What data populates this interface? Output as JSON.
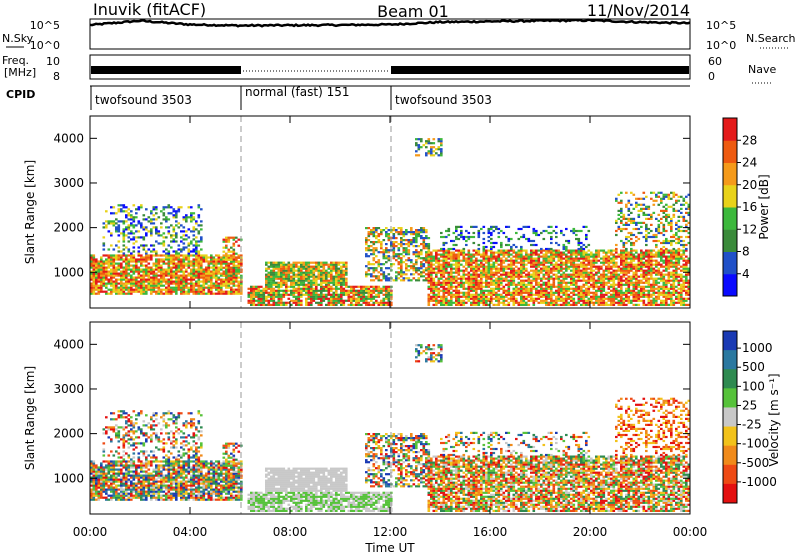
{
  "header": {
    "station": "Inuvik (fitACF)",
    "beam": "Beam 01",
    "date": "11/Nov/2014"
  },
  "top_panels": {
    "nsky_label": "N.Sky",
    "nsky_ticks": [
      "10^5",
      "10^0"
    ],
    "nsearch_label": "N.Search",
    "nsearch_ticks": [
      "10^5",
      "10^0"
    ],
    "freq_label_1": "Freq.",
    "freq_label_2": "[MHz]",
    "freq_ticks": [
      "10",
      "8"
    ],
    "nave_label": "Nave",
    "nave_ticks": [
      "60",
      "0"
    ],
    "cpid_label": "CPID",
    "cpid_segments": [
      {
        "label": "twofsound 3503",
        "start_hour": 0,
        "end_hour": 6
      },
      {
        "label": "normal (fast) 151",
        "start_hour": 6,
        "end_hour": 12
      },
      {
        "label": "twofsound 3503",
        "start_hour": 12,
        "end_hour": 24
      }
    ]
  },
  "x_axis": {
    "label": "Time UT",
    "ticks": [
      "00:00",
      "04:00",
      "08:00",
      "12:00",
      "16:00",
      "20:00",
      "00:00"
    ],
    "tick_hours": [
      0,
      4,
      8,
      12,
      16,
      20,
      24
    ]
  },
  "power_panel": {
    "ylabel": "Slant Range [km]",
    "yticks": [
      "1000",
      "2000",
      "3000",
      "4000"
    ],
    "colorbar_label": "Power [dB]",
    "colorbar_ticks": [
      "4",
      "8",
      "12",
      "16",
      "20",
      "24",
      "28"
    ],
    "colors": [
      "#0a0aff",
      "#2050c8",
      "#3a8a3a",
      "#3cb83c",
      "#e8d21a",
      "#f59a1a",
      "#ee5a10",
      "#e41a1a"
    ]
  },
  "velocity_panel": {
    "ylabel": "Slant Range [km]",
    "yticks": [
      "1000",
      "2000",
      "3000",
      "4000"
    ],
    "colorbar_label": "Velocity [m s⁻¹]",
    "colorbar_ticks": [
      "1000",
      "500",
      "100",
      "25",
      "-25",
      "-100",
      "-500",
      "-1000"
    ],
    "colors": [
      "#1a3ab4",
      "#2a78a0",
      "#2e8a50",
      "#56c23a",
      "#c8c8c8",
      "#f2c21a",
      "#f08a1a",
      "#ee4a14",
      "#e41010"
    ]
  },
  "chart_data": [
    {
      "type": "line",
      "title": "N.Sky / N.Search",
      "x": [
        0,
        2,
        4,
        6,
        8,
        10,
        12,
        14,
        16,
        18,
        20,
        22,
        24
      ],
      "series": [
        {
          "name": "N.Sky",
          "values": [
            10000,
            50000,
            12000,
            8000,
            9000,
            10000,
            12000,
            30000,
            40000,
            50000,
            60000,
            30000,
            20000
          ]
        }
      ],
      "ylim": [
        1,
        100000
      ]
    },
    {
      "type": "line",
      "title": "Freq. / Nave",
      "x": [
        0,
        6,
        12,
        24
      ],
      "series": [
        {
          "name": "Freq.",
          "values": [
            10,
            8,
            10,
            10
          ]
        }
      ],
      "ylim": [
        8,
        10
      ]
    },
    {
      "type": "heatmap",
      "title": "Power",
      "xlabel": "Time UT",
      "ylabel": "Slant Range [km]",
      "xlim": [
        0,
        24
      ],
      "ylim": [
        200,
        4500
      ],
      "colorbar_label": "Power [dB]",
      "colorbar_range": [
        0,
        30
      ]
    },
    {
      "type": "heatmap",
      "title": "Velocity",
      "xlabel": "Time UT",
      "ylabel": "Slant Range [km]",
      "xlim": [
        0,
        24
      ],
      "ylim": [
        200,
        4500
      ],
      "colorbar_label": "Velocity [m s⁻¹]",
      "colorbar_range": [
        -1000,
        1000
      ]
    }
  ]
}
